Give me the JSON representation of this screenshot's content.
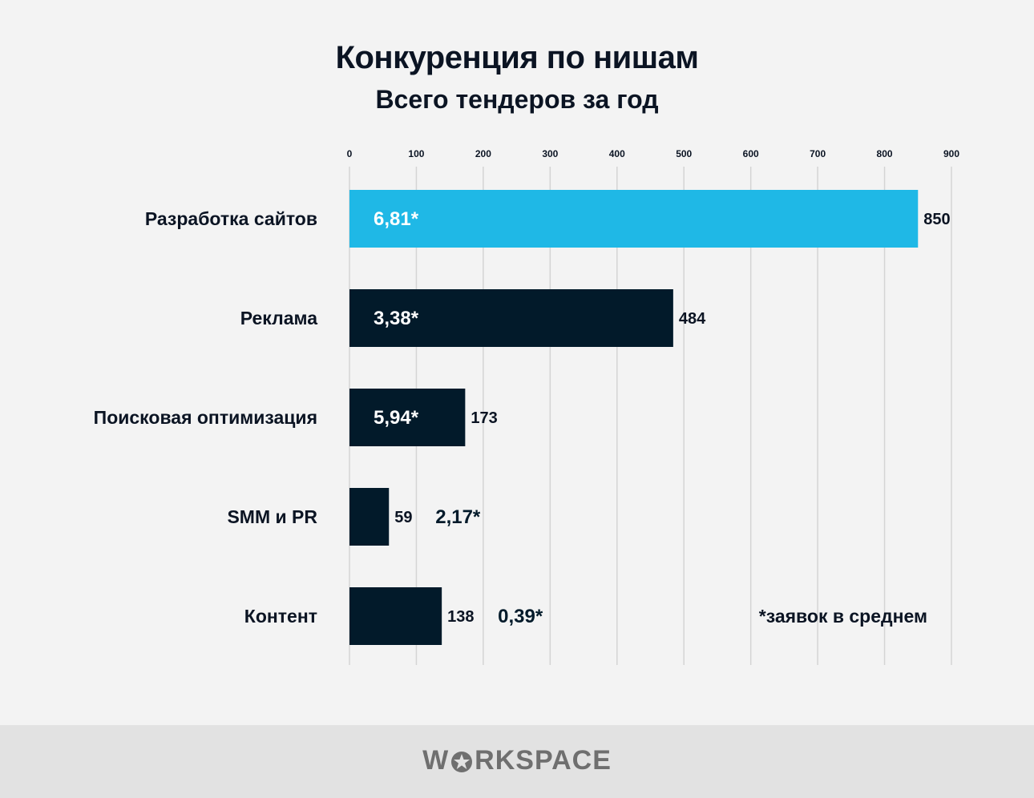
{
  "title": "Конкуренция по нишам",
  "subtitle": "Всего тендеров за год",
  "footer": {
    "brand_prefix": "W",
    "brand_suffix": "RKSPACE",
    "brand_icon": "star-icon"
  },
  "colors": {
    "highlight": "#1fb8e6",
    "bar": "#021a2a",
    "text": "#0b1423",
    "grid": "#d4d4d4",
    "background": "#f3f3f3"
  },
  "chart_data": {
    "type": "bar",
    "orientation": "horizontal",
    "title": "Конкуренция по нишам",
    "subtitle": "Всего тендеров за год",
    "xlabel": "",
    "ylabel": "",
    "xlim": [
      0,
      900
    ],
    "x_ticks": [
      0,
      100,
      200,
      300,
      400,
      500,
      600,
      700,
      800,
      900
    ],
    "x_axis_position": "top",
    "grid": true,
    "categories": [
      "Разработка сайтов",
      "Реклама",
      "Поисковая оптимизация",
      "SMM и PR",
      "Контент"
    ],
    "values": [
      850,
      484,
      173,
      59,
      138
    ],
    "avg_labels": [
      "6,81*",
      "3,38*",
      "5,94*",
      "2,17*",
      "0,39*"
    ],
    "highlight": [
      true,
      false,
      false,
      false,
      false
    ],
    "annotation": "*заявок в среднем"
  }
}
